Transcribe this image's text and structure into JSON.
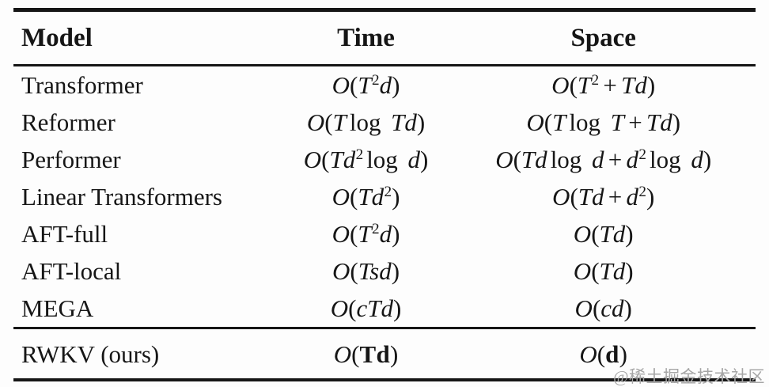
{
  "figure": {
    "background": "#fdfdfd",
    "text_color": "#161616",
    "rule_color": "#161616"
  },
  "watermark": {
    "text": "@稀土掘金技术社区",
    "color": "#a6a6a6"
  },
  "table": {
    "headers": [
      {
        "label": "Model"
      },
      {
        "label": "Time"
      },
      {
        "label": "Space"
      }
    ],
    "rows": [
      {
        "model": "Transformer",
        "time": "O(T^2d)",
        "space": "O(T^2+Td)"
      },
      {
        "model": "Reformer",
        "time": "O(T\\log Td)",
        "space": "O(T\\log T+Td)"
      },
      {
        "model": "Performer",
        "time": "O(Td^2\\log d)",
        "space": "O(Td\\log d+d^2\\log d)"
      },
      {
        "model": "Linear Transformers",
        "time": "O(Td^2)",
        "space": "O(Td+d^2)"
      },
      {
        "model": "AFT-full",
        "time": "O(T^2d)",
        "space": "O(Td)"
      },
      {
        "model": "AFT-local",
        "time": "O(Tsd)",
        "space": "O(Td)"
      },
      {
        "model": "MEGA",
        "time": "O(cTd)",
        "space": "O(cd)"
      }
    ],
    "final_row": {
      "model": "RWKV (ours)",
      "time": "O(\\b{Td})",
      "space": "O(\\b{d})"
    }
  }
}
